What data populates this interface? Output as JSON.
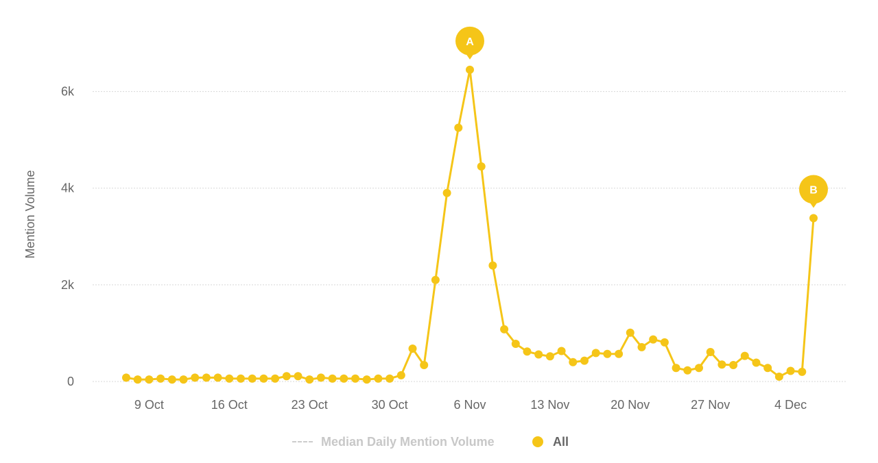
{
  "chart_data": {
    "type": "line",
    "ylabel": "Mention Volume",
    "ylim": [
      0,
      7000
    ],
    "yticks": [
      0,
      2000,
      4000,
      6000
    ],
    "ytick_labels": [
      "0",
      "2k",
      "4k",
      "6k"
    ],
    "x_start": "2023-10-07",
    "x": [
      "2023-10-07",
      "2023-10-08",
      "2023-10-09",
      "2023-10-10",
      "2023-10-11",
      "2023-10-12",
      "2023-10-13",
      "2023-10-14",
      "2023-10-15",
      "2023-10-16",
      "2023-10-17",
      "2023-10-18",
      "2023-10-19",
      "2023-10-20",
      "2023-10-21",
      "2023-10-22",
      "2023-10-23",
      "2023-10-24",
      "2023-10-25",
      "2023-10-26",
      "2023-10-27",
      "2023-10-28",
      "2023-10-29",
      "2023-10-30",
      "2023-10-31",
      "2023-11-01",
      "2023-11-02",
      "2023-11-03",
      "2023-11-04",
      "2023-11-05",
      "2023-11-06",
      "2023-11-07",
      "2023-11-08",
      "2023-11-09",
      "2023-11-10",
      "2023-11-11",
      "2023-11-12",
      "2023-11-13",
      "2023-11-14",
      "2023-11-15",
      "2023-11-16",
      "2023-11-17",
      "2023-11-18",
      "2023-11-19",
      "2023-11-20",
      "2023-11-21",
      "2023-11-22",
      "2023-11-23",
      "2023-11-24",
      "2023-11-25",
      "2023-11-26",
      "2023-11-27",
      "2023-11-28",
      "2023-11-29",
      "2023-11-30",
      "2023-12-01",
      "2023-12-02",
      "2023-12-03",
      "2023-12-04",
      "2023-12-05",
      "2023-12-06"
    ],
    "xtick_labels": [
      "9 Oct",
      "16 Oct",
      "23 Oct",
      "30 Oct",
      "6 Nov",
      "13 Nov",
      "20 Nov",
      "27 Nov",
      "4 Dec"
    ],
    "series": [
      {
        "name": "All",
        "color": "#f5c518",
        "values": [
          80,
          40,
          40,
          60,
          40,
          40,
          80,
          80,
          80,
          60,
          60,
          60,
          60,
          60,
          110,
          110,
          40,
          80,
          60,
          60,
          60,
          40,
          60,
          60,
          130,
          680,
          340,
          2100,
          3900,
          5250,
          6450,
          4450,
          2400,
          1080,
          780,
          620,
          560,
          520,
          630,
          400,
          430,
          590,
          570,
          570,
          1010,
          710,
          870,
          810,
          280,
          230,
          280,
          610,
          350,
          340,
          530,
          390,
          280,
          100,
          220,
          200,
          3380
        ]
      }
    ],
    "markers": [
      {
        "label": "A",
        "index": 30
      },
      {
        "label": "B",
        "index": 60
      }
    ],
    "grid": true,
    "legend": {
      "position": "bottom",
      "items": [
        {
          "label": "Median Daily Mention Volume",
          "style": "dashed",
          "color": "#cccccc",
          "text_color": "#c8c8c8",
          "bold": false
        },
        {
          "label": "All",
          "style": "dot",
          "color": "#f5c518",
          "text_color": "#666666",
          "bold": true
        }
      ]
    }
  }
}
